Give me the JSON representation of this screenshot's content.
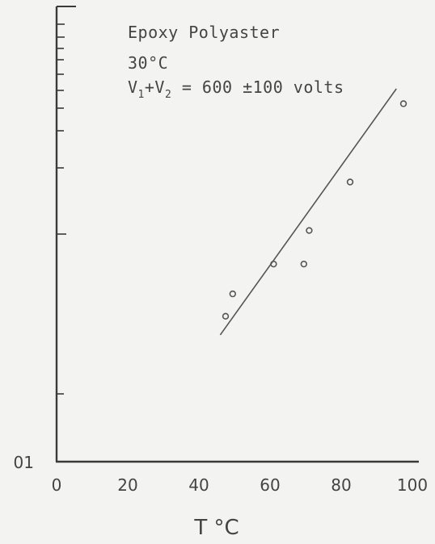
{
  "chart_data": {
    "type": "scatter",
    "title": "",
    "annotations": [
      "Epoxy Polyaster",
      "30°C",
      "V1+V2 = 600 ±100 volts"
    ],
    "xlabel": "T °C",
    "ylabel": "",
    "xlim": [
      0,
      100
    ],
    "x_ticks": [
      "0",
      "20",
      "40",
      "60",
      "80",
      "100"
    ],
    "y_tick_labels": [
      "01"
    ],
    "grid": false,
    "series": [
      {
        "x": [
          47.5,
          49.5,
          61,
          69.5,
          71,
          82.5,
          97.5
        ],
        "y": [
          0.39,
          0.45,
          0.53,
          0.53,
          0.62,
          0.75,
          0.96
        ]
      }
    ],
    "fit_line": {
      "x": [
        46,
        95.5
      ],
      "y": [
        0.34,
        1.0
      ]
    }
  },
  "annotation": {
    "line1": "Epoxy Polyaster",
    "line2": "30°C",
    "line3_v1": "V",
    "line3_sub1": "1",
    "line3_plus_v2": "+V",
    "line3_sub2": "2",
    "line3_rest": " = 600 ±100 volts"
  },
  "colors": {
    "axis": "#3a3a3a",
    "marker": "#555555",
    "fit": "#555555",
    "background": "#f3f3f1"
  }
}
